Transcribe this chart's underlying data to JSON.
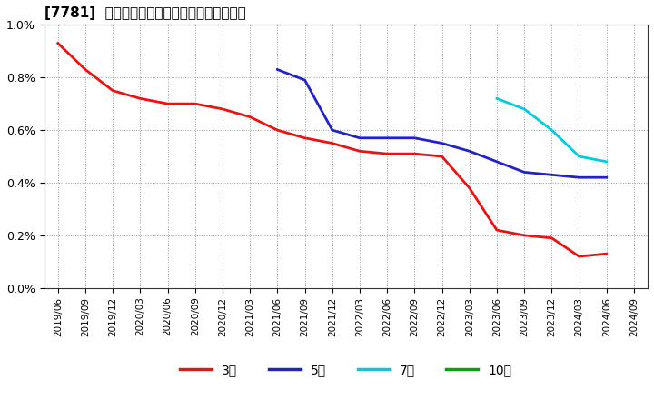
{
  "title": "[7781]  当期純利益マージンの標準偏差の推移",
  "ylim": [
    0.0,
    0.01
  ],
  "yticks": [
    0.0,
    0.002,
    0.004,
    0.006,
    0.008,
    0.01
  ],
  "ytick_labels": [
    "0.0%",
    "0.2%",
    "0.4%",
    "0.6%",
    "0.8%",
    "1.0%"
  ],
  "background_color": "#ffffff",
  "grid_color": "#999999",
  "series": {
    "3年": {
      "color": "#ee1111",
      "x": [
        "2019/06",
        "2019/09",
        "2019/12",
        "2020/03",
        "2020/06",
        "2020/09",
        "2020/12",
        "2021/03",
        "2021/06",
        "2021/09",
        "2021/12",
        "2022/03",
        "2022/06",
        "2022/09",
        "2022/12",
        "2023/03",
        "2023/06",
        "2023/09",
        "2023/12",
        "2024/03",
        "2024/06"
      ],
      "y": [
        0.0093,
        0.0083,
        0.0075,
        0.0072,
        0.007,
        0.007,
        0.0068,
        0.0065,
        0.006,
        0.0057,
        0.0055,
        0.0052,
        0.0051,
        0.0051,
        0.005,
        0.0038,
        0.0022,
        0.002,
        0.0019,
        0.0012,
        0.0013
      ]
    },
    "5年": {
      "color": "#2222cc",
      "x": [
        "2021/06",
        "2021/09",
        "2021/12",
        "2022/03",
        "2022/06",
        "2022/09",
        "2022/12",
        "2023/03",
        "2023/06",
        "2023/09",
        "2023/12",
        "2024/03",
        "2024/06"
      ],
      "y": [
        0.0083,
        0.0079,
        0.006,
        0.0057,
        0.0057,
        0.0057,
        0.0055,
        0.0052,
        0.0048,
        0.0044,
        0.0043,
        0.0042,
        0.0042
      ]
    },
    "7年": {
      "color": "#00ccdd",
      "x": [
        "2023/06",
        "2023/09",
        "2023/12",
        "2024/03",
        "2024/06"
      ],
      "y": [
        0.0072,
        0.0068,
        0.006,
        0.005,
        0.0048
      ]
    },
    "10年": {
      "color": "#00aa00",
      "x": [],
      "y": []
    }
  },
  "legend_labels": [
    "3年",
    "5年",
    "7年",
    "10年"
  ],
  "legend_colors": [
    "#ee1111",
    "#2222cc",
    "#00ccdd",
    "#00aa00"
  ],
  "x_all_ticks": [
    "2019/06",
    "2019/09",
    "2019/12",
    "2020/03",
    "2020/06",
    "2020/09",
    "2020/12",
    "2021/03",
    "2021/06",
    "2021/09",
    "2021/12",
    "2022/03",
    "2022/06",
    "2022/09",
    "2022/12",
    "2023/03",
    "2023/06",
    "2023/09",
    "2023/12",
    "2024/03",
    "2024/06",
    "2024/09"
  ]
}
